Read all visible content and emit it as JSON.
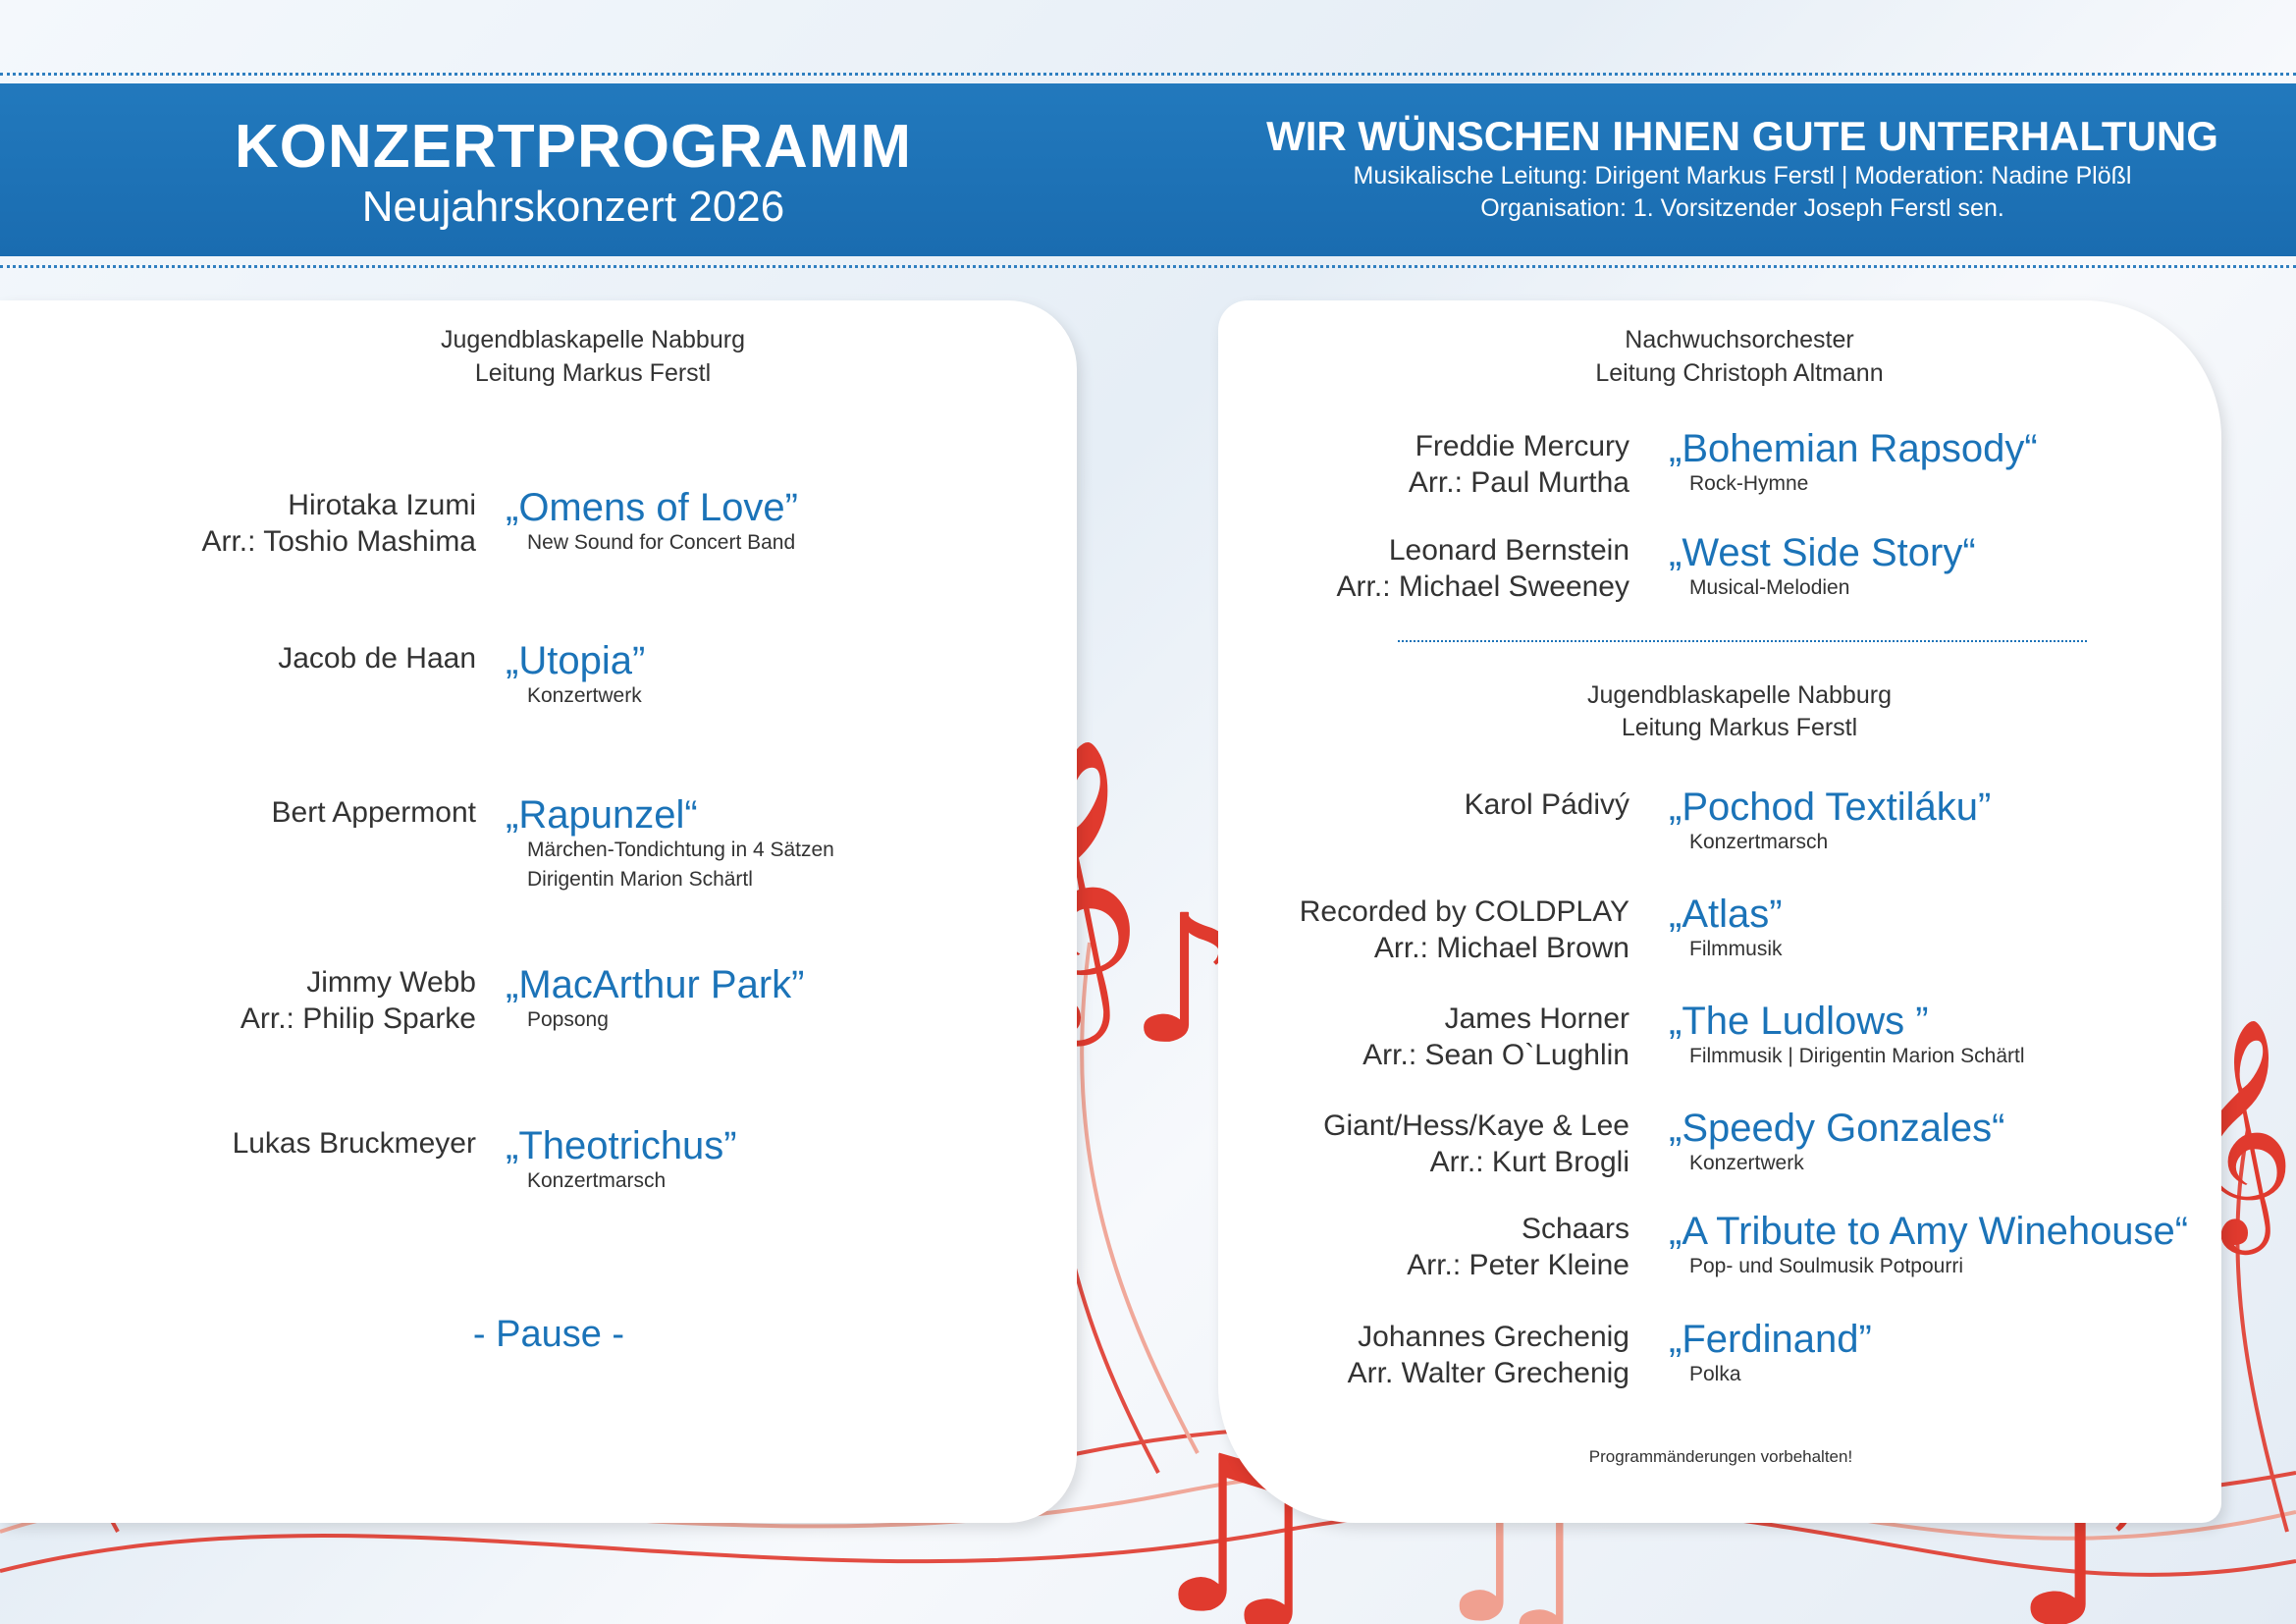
{
  "header": {
    "title": "KONZERTPROGRAMM",
    "subtitle": "Neujahrskonzert 2026",
    "right_heading": "WIR WÜNSCHEN IHNEN GUTE UNTERHALTUNG",
    "right_line1": "Musikalische Leitung: Dirigent Markus Ferstl | Moderation: Nadine Plößl",
    "right_line2": "Organisation: 1. Vorsitzender Joseph Ferstl sen."
  },
  "left": {
    "section": {
      "line1": "Jugendblaskapelle Nabburg",
      "line2": "Leitung Markus Ferstl"
    },
    "items": [
      {
        "composer": [
          "Hirotaka Izumi",
          "Arr.: Toshio Mashima"
        ],
        "title": "„Omens of Love”",
        "desc": [
          "New Sound for Concert Band"
        ]
      },
      {
        "composer": [
          "Jacob de Haan"
        ],
        "title": "„Utopia”",
        "desc": [
          "Konzertwerk"
        ]
      },
      {
        "composer": [
          "Bert Appermont"
        ],
        "title": "„Rapunzel“",
        "desc": [
          "Märchen-Tondichtung in 4 Sätzen",
          "Dirigentin Marion Schärtl"
        ]
      },
      {
        "composer": [
          "Jimmy Webb",
          "Arr.: Philip Sparke"
        ],
        "title": "„MacArthur Park”",
        "desc": [
          "Popsong"
        ]
      },
      {
        "composer": [
          "Lukas Bruckmeyer"
        ],
        "title": "„Theotrichus”",
        "desc": [
          "Konzertmarsch"
        ]
      }
    ],
    "pause": "- Pause -"
  },
  "right": {
    "section1": {
      "line1": "Nachwuchsorchester",
      "line2": "Leitung Christoph Altmann"
    },
    "items1": [
      {
        "composer": [
          "Freddie Mercury",
          "Arr.: Paul Murtha"
        ],
        "title": "„Bohemian Rapsody“",
        "desc": [
          "Rock-Hymne"
        ]
      },
      {
        "composer": [
          "Leonard Bernstein",
          "Arr.: Michael Sweeney"
        ],
        "title": "„West Side Story“",
        "desc": [
          "Musical-Melodien"
        ]
      }
    ],
    "section2": {
      "line1": "Jugendblaskapelle Nabburg",
      "line2": "Leitung Markus Ferstl"
    },
    "items2": [
      {
        "composer": [
          "Karol Pádivý"
        ],
        "title": "„Pochod Textiláku”",
        "desc": [
          "Konzertmarsch"
        ]
      },
      {
        "composer": [
          "Recorded by COLDPLAY",
          "Arr.: Michael Brown"
        ],
        "title": "„Atlas”",
        "desc": [
          "Filmmusik"
        ]
      },
      {
        "composer": [
          "James Horner",
          "Arr.: Sean O`Lughlin"
        ],
        "title": "„The Ludlows ”",
        "desc": [
          "Filmmusik | Dirigentin Marion Schärtl"
        ]
      },
      {
        "composer": [
          "Giant/Hess/Kaye & Lee",
          "Arr.: Kurt Brogli"
        ],
        "title": "„Speedy Gonzales“",
        "desc": [
          "Konzertwerk"
        ]
      },
      {
        "composer": [
          "Schaars",
          "Arr.: Peter Kleine"
        ],
        "title": "„A Tribute to Amy Winehouse“",
        "desc": [
          "Pop- und Soulmusik Potpourri"
        ]
      },
      {
        "composer": [
          "Johannes Grechenig",
          "Arr. Walter Grechenig"
        ],
        "title": "„Ferdinand”",
        "desc": [
          "Polka"
        ]
      }
    ],
    "footnote": "Programmänderungen vorbehalten!"
  },
  "colors": {
    "band": "#1b6fb5",
    "title_blue": "#1b73b8",
    "note_red": "#e03a2e"
  },
  "icons": [
    "treble-clef-icon",
    "music-note-icon"
  ]
}
